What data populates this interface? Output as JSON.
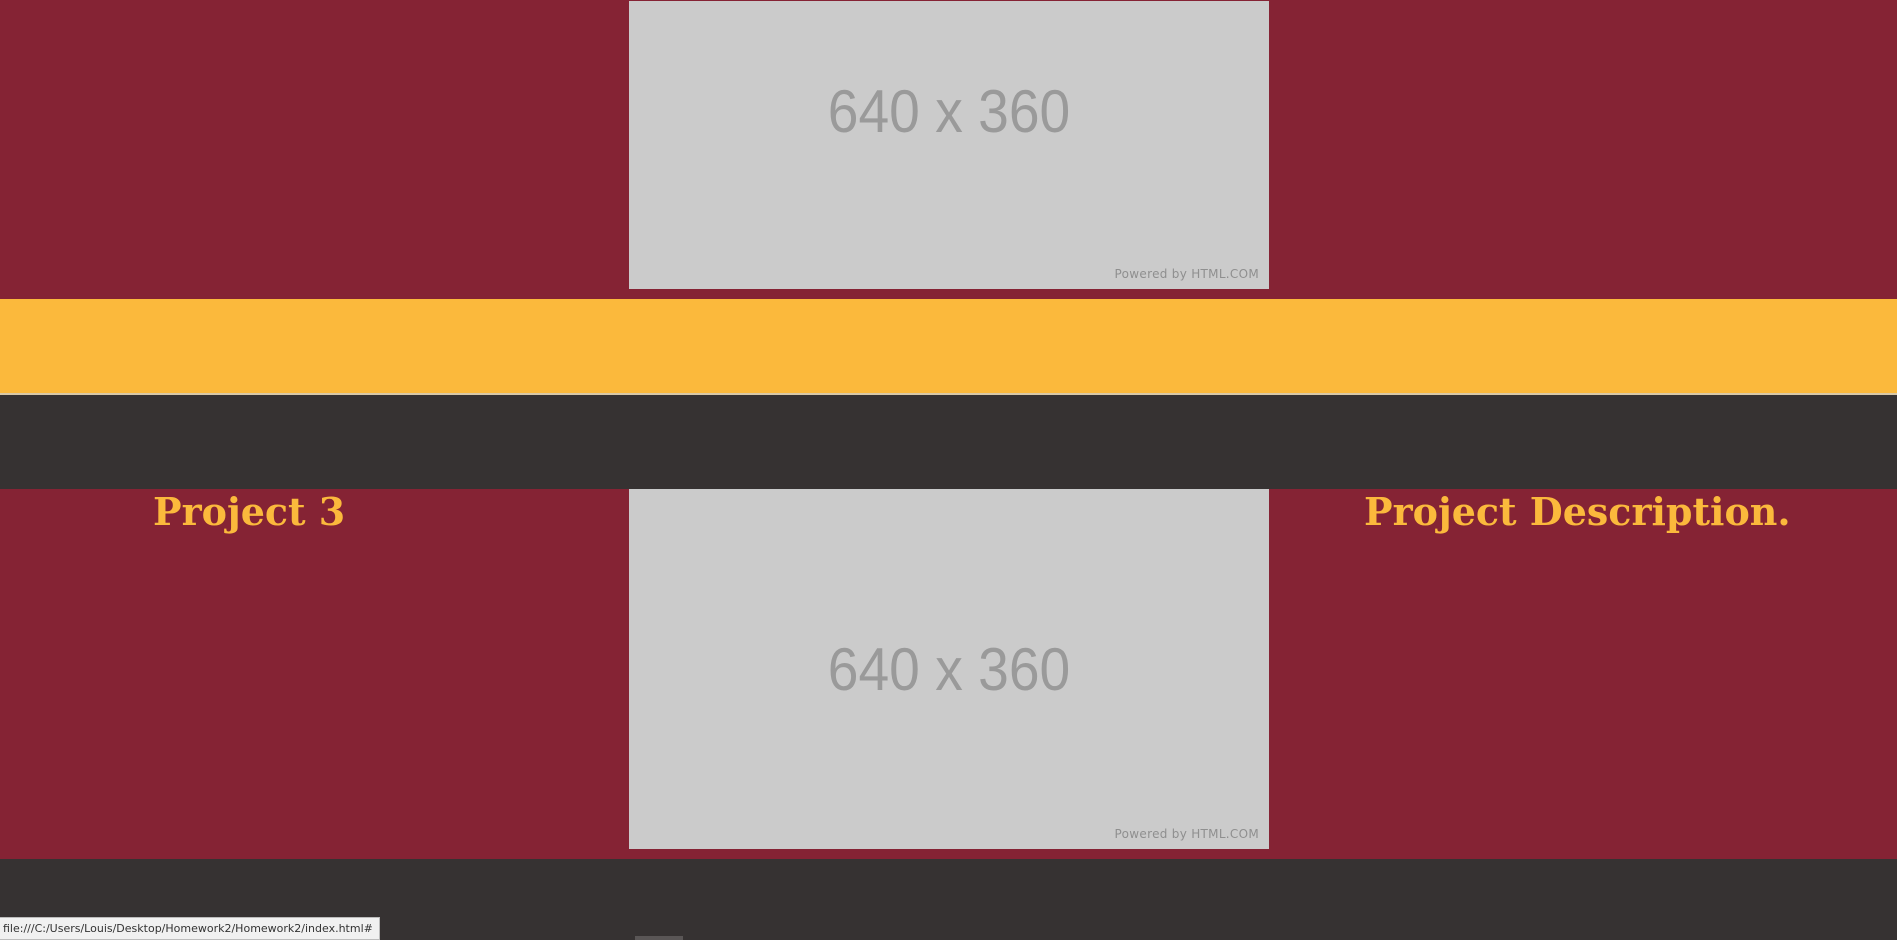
{
  "placeholders": [
    {
      "dims": "640 x 360",
      "powered": "Powered by HTML.COM"
    },
    {
      "dims": "640 x 360",
      "powered": "Powered by HTML.COM"
    }
  ],
  "project": {
    "title": "Project 3",
    "description": "Project Description."
  },
  "status_bar": {
    "url": "file:///C:/Users/Louis/Desktop/Homework2/Homework2/index.html#"
  },
  "colors": {
    "maroon": "#852334",
    "gold": "#fbb93c",
    "dark": "#363232",
    "placeholder_gray": "#cbcbcb"
  }
}
